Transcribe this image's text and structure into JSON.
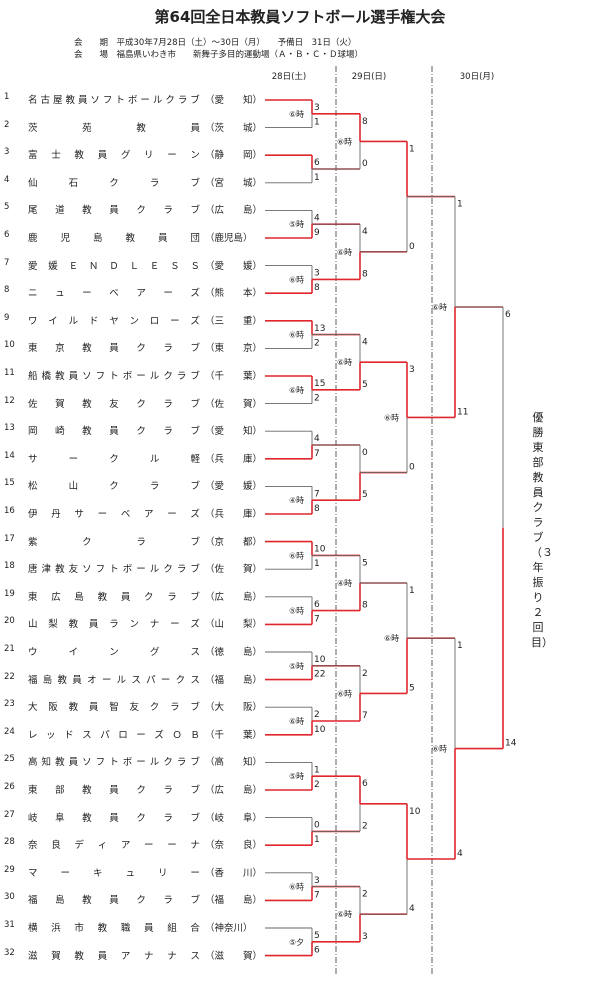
{
  "title": "第64回全日本教員ソフトボール選手権大会",
  "info": {
    "period": "会　　期　平成30年7月28日（土）～30日（月）　　予備日　31日（火）",
    "venue": "会　　場　福島県いわき市　　新舞子多目的運動場（Ａ・Ｂ・Ｃ・Ｄ球場）"
  },
  "days": [
    "28日(土)",
    "29日(日)",
    "30日(月)"
  ],
  "teams": [
    {
      "no": "1",
      "name": "名古屋教員ソフトボールクラブ",
      "pref": "（愛　　知）"
    },
    {
      "no": "2",
      "name": "茨　　　苑　　　教　　　員",
      "pref": "（茨　　城）"
    },
    {
      "no": "3",
      "name": "富士教員グリーン",
      "pref": "（静　　岡）"
    },
    {
      "no": "4",
      "name": "仙　　石　　ク　　ラ　　ブ",
      "pref": "（宮　　城）"
    },
    {
      "no": "5",
      "name": "尾道教員クラブ",
      "pref": "（広　　島）"
    },
    {
      "no": "6",
      "name": "鹿児島教員団",
      "pref": "（鹿児島）"
    },
    {
      "no": "7",
      "name": "愛媛ＥＮＤＬＥＳＳ",
      "pref": "（愛　　媛）"
    },
    {
      "no": "8",
      "name": "ニューベアーズ",
      "pref": "（熊　　本）"
    },
    {
      "no": "9",
      "name": "ワイルドヤンローズ",
      "pref": "（三　　重）"
    },
    {
      "no": "10",
      "name": "東京教員クラブ",
      "pref": "（東　　京）"
    },
    {
      "no": "11",
      "name": "船橋教員ソフトボールクラブ",
      "pref": "（千　　葉）"
    },
    {
      "no": "12",
      "name": "佐賀教友クラブ",
      "pref": "（佐　　賀）"
    },
    {
      "no": "13",
      "name": "岡崎教員クラブ",
      "pref": "（愛　　知）"
    },
    {
      "no": "14",
      "name": "サークル軽",
      "pref": "（兵　　庫）"
    },
    {
      "no": "15",
      "name": "松　　山　　ク　　ラ　　ブ",
      "pref": "（愛　　媛）"
    },
    {
      "no": "16",
      "name": "伊丹サーベアーズ",
      "pref": "（兵　　庫）"
    },
    {
      "no": "17",
      "name": "紫　　　ク　　　ラ　　　ブ",
      "pref": "（京　　都）"
    },
    {
      "no": "18",
      "name": "唐津教友ソフトボールクラブ",
      "pref": "（佐　　賀）"
    },
    {
      "no": "19",
      "name": "東広島教員クラブ",
      "pref": "（広　　島）"
    },
    {
      "no": "20",
      "name": "山梨教員ランナーズ",
      "pref": "（山　　梨）"
    },
    {
      "no": "21",
      "name": "ウ　　イ　　ン　　グ　　ス",
      "pref": "（徳　　島）"
    },
    {
      "no": "22",
      "name": "福島教員オールスパークス",
      "pref": "（福　　島）"
    },
    {
      "no": "23",
      "name": "大阪教員智友クラブ",
      "pref": "（大　　阪）"
    },
    {
      "no": "24",
      "name": "レッドスパローズＯＢ",
      "pref": "（千　　葉）"
    },
    {
      "no": "25",
      "name": "高知教員ソフトボールクラブ",
      "pref": "（高　　知）"
    },
    {
      "no": "26",
      "name": "東部教員クラブ",
      "pref": "（広　　島）"
    },
    {
      "no": "27",
      "name": "岐阜教員クラブ",
      "pref": "（岐　　阜）"
    },
    {
      "no": "28",
      "name": "奈良ディアーーナ",
      "pref": "（奈　　良）"
    },
    {
      "no": "29",
      "name": "マーキュリー",
      "pref": "（香　　川）"
    },
    {
      "no": "30",
      "name": "福島教員クラブ",
      "pref": "（福　　島）"
    },
    {
      "no": "31",
      "name": "横浜市教職員組合",
      "pref": "（神奈川）"
    },
    {
      "no": "32",
      "name": "滋賀教員アナナス",
      "pref": "（滋　　賀）"
    }
  ],
  "round1": [
    {
      "label": "⑥時",
      "top": "3",
      "bottom": "1",
      "win": "top"
    },
    {
      "label": "",
      "top": "6",
      "bottom": "1",
      "win": "top"
    },
    {
      "label": "⑤時",
      "top": "4",
      "bottom": "9",
      "win": "bottom"
    },
    {
      "label": "⑥時",
      "top": "3",
      "bottom": "8",
      "win": "bottom"
    },
    {
      "label": "⑥時",
      "top": "13",
      "bottom": "2",
      "win": "top"
    },
    {
      "label": "⑥時",
      "top": "15",
      "bottom": "2",
      "win": "top"
    },
    {
      "label": "",
      "top": "4",
      "bottom": "7",
      "win": "bottom"
    },
    {
      "label": "④時",
      "top": "7",
      "bottom": "8",
      "win": "bottom"
    },
    {
      "label": "⑥時",
      "top": "10",
      "bottom": "1",
      "win": "top"
    },
    {
      "label": "⑤時",
      "top": "6",
      "bottom": "7",
      "win": "bottom"
    },
    {
      "label": "⑤時",
      "top": "10",
      "bottom": "22",
      "win": "bottom"
    },
    {
      "label": "⑥時",
      "top": "2",
      "bottom": "10",
      "win": "bottom"
    },
    {
      "label": "⑤時",
      "top": "1",
      "bottom": "2",
      "win": "bottom"
    },
    {
      "label": "",
      "top": "0",
      "bottom": "1",
      "win": "bottom"
    },
    {
      "label": "⑥時",
      "top": "3",
      "bottom": "7",
      "win": "bottom"
    },
    {
      "label": "⑤夕",
      "top": "5",
      "bottom": "6",
      "win": "bottom"
    }
  ],
  "round2": [
    {
      "label": "⑥時",
      "top": "8",
      "bottom": "0",
      "win": "top"
    },
    {
      "label": "⑥時",
      "top": "4",
      "bottom": "8",
      "win": "bottom"
    },
    {
      "label": "⑥時",
      "top": "4",
      "bottom": "5",
      "win": "bottom"
    },
    {
      "label": "",
      "top": "0",
      "bottom": "5",
      "win": "bottom"
    },
    {
      "label": "④時",
      "top": "5",
      "bottom": "8",
      "win": "bottom"
    },
    {
      "label": "⑥時",
      "top": "2",
      "bottom": "7",
      "win": "bottom"
    },
    {
      "label": "",
      "top": "6",
      "bottom": "2",
      "win": "top"
    },
    {
      "label": "⑥時",
      "top": "2",
      "bottom": "3",
      "win": "bottom"
    }
  ],
  "round3": [
    {
      "label": "",
      "top": "1",
      "bottom": "0",
      "win": "top"
    },
    {
      "label": "⑥時",
      "top": "3",
      "bottom": "0",
      "win": "top"
    },
    {
      "label": "⑥時",
      "top": "1",
      "bottom": "5",
      "win": "bottom"
    },
    {
      "label": "",
      "top": "10",
      "bottom": "4",
      "win": "top"
    }
  ],
  "round4": [
    {
      "label": "⑥時",
      "top": "1",
      "bottom": "11",
      "win": "bottom"
    },
    {
      "label": "⑥時",
      "top": "1",
      "bottom": "4",
      "win": "bottom"
    }
  ],
  "final": {
    "label": "",
    "top": "6",
    "bottom": "14",
    "win": "bottom"
  },
  "champion": "優勝　東部教員クラブ（３年振り２回目）",
  "colors": {
    "win": "#e0262d",
    "lose": "#666666",
    "sep": "#333333"
  }
}
